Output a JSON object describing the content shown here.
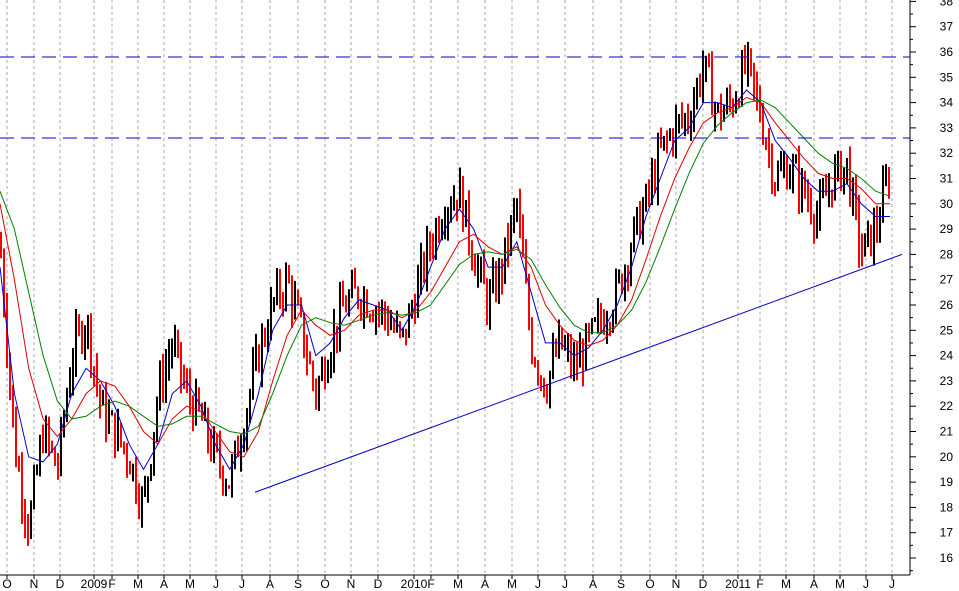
{
  "chart_data": {
    "type": "candlestick",
    "grid": true,
    "colors": {
      "up_candle": "#000000",
      "down_candle": "#ff0000",
      "ma_short": "#0000cc",
      "ma_mid": "#dd0000",
      "ma_long": "#008000",
      "trendline": "#0000cc",
      "resistance": "#0000cc",
      "grid": "#aaaaaa"
    },
    "ylim": [
      15.3,
      39.2
    ],
    "y_ticks": [
      16,
      17,
      18,
      19,
      20,
      21,
      22,
      23,
      24,
      25,
      26,
      27,
      28,
      29,
      30,
      31,
      32,
      33,
      34,
      35,
      36,
      37,
      38
    ],
    "x_ticks": [
      "O",
      "N",
      "D",
      "2009",
      "F",
      "M",
      "A",
      "M",
      "J",
      "J",
      "A",
      "S",
      "O",
      "N",
      "D",
      "2010",
      "F",
      "M",
      "A",
      "M",
      "J",
      "J",
      "A",
      "S",
      "O",
      "N",
      "D",
      "2011",
      "F",
      "M",
      "A",
      "M",
      "J",
      "J"
    ],
    "resistance_levels": [
      35.8,
      32.6
    ],
    "trendline": {
      "from": [
        "J",
        18.6
      ],
      "to": [
        "J",
        28.0
      ]
    },
    "price_series": [
      {
        "month": "O",
        "value": 28.5
      },
      {
        "month": "N",
        "value": 20.5
      },
      {
        "month": "N",
        "value": 17.2
      },
      {
        "month": "D",
        "value": 21.0
      },
      {
        "month": "D",
        "value": 19.5
      },
      {
        "month": "2009",
        "value": 24.0
      },
      {
        "month": "2009",
        "value": 25.5
      },
      {
        "month": "F",
        "value": 22.0
      },
      {
        "month": "F",
        "value": 21.0
      },
      {
        "month": "M",
        "value": 20.0
      },
      {
        "month": "M",
        "value": 18.0
      },
      {
        "month": "A",
        "value": 22.5
      },
      {
        "month": "A",
        "value": 24.5
      },
      {
        "month": "M",
        "value": 22.5
      },
      {
        "month": "M",
        "value": 21.5
      },
      {
        "month": "J",
        "value": 20.0
      },
      {
        "month": "J",
        "value": 19.0
      },
      {
        "month": "A",
        "value": 21.5
      },
      {
        "month": "A",
        "value": 24.0
      },
      {
        "month": "S",
        "value": 26.0
      },
      {
        "month": "S",
        "value": 27.0
      },
      {
        "month": "O",
        "value": 25.0
      },
      {
        "month": "N",
        "value": 22.5
      },
      {
        "month": "N",
        "value": 24.5
      },
      {
        "month": "D",
        "value": 26.0
      },
      {
        "month": "D",
        "value": 26.5
      },
      {
        "month": "2010",
        "value": 26.0
      },
      {
        "month": "2010",
        "value": 25.5
      },
      {
        "month": "F",
        "value": 24.5
      },
      {
        "month": "M",
        "value": 26.5
      },
      {
        "month": "M",
        "value": 28.5
      },
      {
        "month": "A",
        "value": 30.0
      },
      {
        "month": "A",
        "value": 30.5
      },
      {
        "month": "M",
        "value": 28.0
      },
      {
        "month": "M",
        "value": 26.0
      },
      {
        "month": "J",
        "value": 27.5
      },
      {
        "month": "J",
        "value": 30.0
      },
      {
        "month": "J",
        "value": 24.5
      },
      {
        "month": "J",
        "value": 22.8
      },
      {
        "month": "A",
        "value": 24.5
      },
      {
        "month": "A",
        "value": 23.5
      },
      {
        "month": "S",
        "value": 24.5
      },
      {
        "month": "S",
        "value": 25.5
      },
      {
        "month": "O",
        "value": 26.5
      },
      {
        "month": "O",
        "value": 28.5
      },
      {
        "month": "N",
        "value": 30.0
      },
      {
        "month": "N",
        "value": 32.0
      },
      {
        "month": "D",
        "value": 33.0
      },
      {
        "month": "D",
        "value": 33.5
      },
      {
        "month": "2011",
        "value": 35.5
      },
      {
        "month": "2011",
        "value": 33.5
      },
      {
        "month": "F",
        "value": 34.0
      },
      {
        "month": "F",
        "value": 35.5
      },
      {
        "month": "M",
        "value": 33.5
      },
      {
        "month": "M",
        "value": 31.0
      },
      {
        "month": "A",
        "value": 31.5
      },
      {
        "month": "A",
        "value": 30.5
      },
      {
        "month": "M",
        "value": 29.5
      },
      {
        "month": "M",
        "value": 31.0
      },
      {
        "month": "J",
        "value": 31.5
      },
      {
        "month": "J",
        "value": 28.0
      },
      {
        "month": "J",
        "value": 29.0
      },
      {
        "month": "J",
        "value": 31.3
      }
    ],
    "ma_short": [
      {
        "month": "O",
        "value": 27.5
      },
      {
        "month": "N",
        "value": 22.5
      },
      {
        "month": "N",
        "value": 20.0
      },
      {
        "month": "D",
        "value": 19.8
      },
      {
        "month": "D",
        "value": 20.5
      },
      {
        "month": "2009",
        "value": 22.5
      },
      {
        "month": "2009",
        "value": 23.5
      },
      {
        "month": "F",
        "value": 23.0
      },
      {
        "month": "F",
        "value": 22.0
      },
      {
        "month": "M",
        "value": 20.5
      },
      {
        "month": "M",
        "value": 19.5
      },
      {
        "month": "A",
        "value": 20.5
      },
      {
        "month": "A",
        "value": 22.5
      },
      {
        "month": "M",
        "value": 23.0
      },
      {
        "month": "M",
        "value": 22.0
      },
      {
        "month": "J",
        "value": 20.5
      },
      {
        "month": "J",
        "value": 19.5
      },
      {
        "month": "A",
        "value": 20.5
      },
      {
        "month": "A",
        "value": 22.5
      },
      {
        "month": "S",
        "value": 25.0
      },
      {
        "month": "S",
        "value": 26.0
      },
      {
        "month": "O",
        "value": 26.0
      },
      {
        "month": "N",
        "value": 24.0
      },
      {
        "month": "N",
        "value": 24.5
      },
      {
        "month": "D",
        "value": 25.5
      },
      {
        "month": "D",
        "value": 26.2
      },
      {
        "month": "2010",
        "value": 26.0
      },
      {
        "month": "2010",
        "value": 25.8
      },
      {
        "month": "F",
        "value": 25.0
      },
      {
        "month": "M",
        "value": 26.0
      },
      {
        "month": "M",
        "value": 27.5
      },
      {
        "month": "A",
        "value": 29.0
      },
      {
        "month": "A",
        "value": 29.8
      },
      {
        "month": "M",
        "value": 29.0
      },
      {
        "month": "M",
        "value": 27.5
      },
      {
        "month": "J",
        "value": 27.5
      },
      {
        "month": "J",
        "value": 28.5
      },
      {
        "month": "J",
        "value": 26.5
      },
      {
        "month": "J",
        "value": 24.5
      },
      {
        "month": "A",
        "value": 24.5
      },
      {
        "month": "A",
        "value": 24.0
      },
      {
        "month": "S",
        "value": 24.3
      },
      {
        "month": "S",
        "value": 25.0
      },
      {
        "month": "O",
        "value": 26.0
      },
      {
        "month": "O",
        "value": 27.5
      },
      {
        "month": "N",
        "value": 29.5
      },
      {
        "month": "N",
        "value": 31.0
      },
      {
        "month": "D",
        "value": 32.5
      },
      {
        "month": "D",
        "value": 33.0
      },
      {
        "month": "2011",
        "value": 34.0
      },
      {
        "month": "2011",
        "value": 34.0
      },
      {
        "month": "F",
        "value": 33.8
      },
      {
        "month": "F",
        "value": 34.5
      },
      {
        "month": "M",
        "value": 34.0
      },
      {
        "month": "M",
        "value": 32.5
      },
      {
        "month": "A",
        "value": 31.8
      },
      {
        "month": "A",
        "value": 31.0
      },
      {
        "month": "M",
        "value": 30.5
      },
      {
        "month": "M",
        "value": 30.5
      },
      {
        "month": "J",
        "value": 30.8
      },
      {
        "month": "J",
        "value": 30.0
      },
      {
        "month": "J",
        "value": 29.5
      },
      {
        "month": "J",
        "value": 29.5
      }
    ],
    "ma_mid": [
      {
        "month": "O",
        "value": 30.0
      },
      {
        "month": "N",
        "value": 27.0
      },
      {
        "month": "N",
        "value": 23.5
      },
      {
        "month": "D",
        "value": 21.5
      },
      {
        "month": "D",
        "value": 20.8
      },
      {
        "month": "2009",
        "value": 21.5
      },
      {
        "month": "2009",
        "value": 22.5
      },
      {
        "month": "F",
        "value": 23.0
      },
      {
        "month": "F",
        "value": 22.8
      },
      {
        "month": "M",
        "value": 22.0
      },
      {
        "month": "M",
        "value": 21.0
      },
      {
        "month": "A",
        "value": 20.5
      },
      {
        "month": "A",
        "value": 21.5
      },
      {
        "month": "M",
        "value": 22.0
      },
      {
        "month": "M",
        "value": 21.8
      },
      {
        "month": "J",
        "value": 21.0
      },
      {
        "month": "J",
        "value": 20.2
      },
      {
        "month": "A",
        "value": 20.0
      },
      {
        "month": "A",
        "value": 21.0
      },
      {
        "month": "S",
        "value": 23.0
      },
      {
        "month": "S",
        "value": 24.8
      },
      {
        "month": "O",
        "value": 25.8
      },
      {
        "month": "N",
        "value": 25.2
      },
      {
        "month": "N",
        "value": 24.8
      },
      {
        "month": "D",
        "value": 25.0
      },
      {
        "month": "D",
        "value": 25.6
      },
      {
        "month": "2010",
        "value": 25.8
      },
      {
        "month": "2010",
        "value": 25.8
      },
      {
        "month": "F",
        "value": 25.5
      },
      {
        "month": "M",
        "value": 25.8
      },
      {
        "month": "M",
        "value": 26.5
      },
      {
        "month": "A",
        "value": 27.5
      },
      {
        "month": "A",
        "value": 28.5
      },
      {
        "month": "M",
        "value": 28.8
      },
      {
        "month": "M",
        "value": 28.3
      },
      {
        "month": "J",
        "value": 28.0
      },
      {
        "month": "J",
        "value": 28.3
      },
      {
        "month": "J",
        "value": 27.5
      },
      {
        "month": "J",
        "value": 26.0
      },
      {
        "month": "A",
        "value": 25.2
      },
      {
        "month": "A",
        "value": 24.6
      },
      {
        "month": "S",
        "value": 24.4
      },
      {
        "month": "S",
        "value": 24.6
      },
      {
        "month": "O",
        "value": 25.2
      },
      {
        "month": "O",
        "value": 26.2
      },
      {
        "month": "N",
        "value": 27.8
      },
      {
        "month": "N",
        "value": 29.5
      },
      {
        "month": "D",
        "value": 31.0
      },
      {
        "month": "D",
        "value": 32.2
      },
      {
        "month": "2011",
        "value": 33.2
      },
      {
        "month": "2011",
        "value": 33.6
      },
      {
        "month": "F",
        "value": 33.8
      },
      {
        "month": "F",
        "value": 34.2
      },
      {
        "month": "M",
        "value": 34.0
      },
      {
        "month": "M",
        "value": 33.2
      },
      {
        "month": "A",
        "value": 32.5
      },
      {
        "month": "A",
        "value": 31.8
      },
      {
        "month": "M",
        "value": 31.2
      },
      {
        "month": "M",
        "value": 31.0
      },
      {
        "month": "J",
        "value": 31.0
      },
      {
        "month": "J",
        "value": 30.6
      },
      {
        "month": "J",
        "value": 30.0
      },
      {
        "month": "J",
        "value": 30.0
      }
    ],
    "ma_long": [
      {
        "month": "O",
        "value": 30.5
      },
      {
        "month": "N",
        "value": 29.0
      },
      {
        "month": "N",
        "value": 26.5
      },
      {
        "month": "D",
        "value": 24.0
      },
      {
        "month": "D",
        "value": 22.2
      },
      {
        "month": "2009",
        "value": 21.5
      },
      {
        "month": "2009",
        "value": 21.6
      },
      {
        "month": "F",
        "value": 22.0
      },
      {
        "month": "F",
        "value": 22.2
      },
      {
        "month": "M",
        "value": 22.0
      },
      {
        "month": "M",
        "value": 21.6
      },
      {
        "month": "A",
        "value": 21.2
      },
      {
        "month": "A",
        "value": 21.3
      },
      {
        "month": "M",
        "value": 21.6
      },
      {
        "month": "M",
        "value": 21.6
      },
      {
        "month": "J",
        "value": 21.3
      },
      {
        "month": "J",
        "value": 21.0
      },
      {
        "month": "A",
        "value": 20.9
      },
      {
        "month": "A",
        "value": 21.2
      },
      {
        "month": "S",
        "value": 22.5
      },
      {
        "month": "S",
        "value": 24.0
      },
      {
        "month": "O",
        "value": 25.2
      },
      {
        "month": "N",
        "value": 25.5
      },
      {
        "month": "N",
        "value": 25.3
      },
      {
        "month": "D",
        "value": 25.2
      },
      {
        "month": "D",
        "value": 25.4
      },
      {
        "month": "2010",
        "value": 25.6
      },
      {
        "month": "2010",
        "value": 25.7
      },
      {
        "month": "F",
        "value": 25.6
      },
      {
        "month": "M",
        "value": 25.7
      },
      {
        "month": "M",
        "value": 26.0
      },
      {
        "month": "A",
        "value": 26.8
      },
      {
        "month": "A",
        "value": 27.6
      },
      {
        "month": "M",
        "value": 28.0
      },
      {
        "month": "M",
        "value": 28.1
      },
      {
        "month": "J",
        "value": 28.0
      },
      {
        "month": "J",
        "value": 28.2
      },
      {
        "month": "J",
        "value": 27.8
      },
      {
        "month": "J",
        "value": 26.8
      },
      {
        "month": "A",
        "value": 25.9
      },
      {
        "month": "A",
        "value": 25.2
      },
      {
        "month": "S",
        "value": 24.9
      },
      {
        "month": "S",
        "value": 24.9
      },
      {
        "month": "O",
        "value": 25.2
      },
      {
        "month": "O",
        "value": 25.8
      },
      {
        "month": "N",
        "value": 26.9
      },
      {
        "month": "N",
        "value": 28.3
      },
      {
        "month": "D",
        "value": 29.8
      },
      {
        "month": "D",
        "value": 31.2
      },
      {
        "month": "2011",
        "value": 32.4
      },
      {
        "month": "2011",
        "value": 33.1
      },
      {
        "month": "F",
        "value": 33.6
      },
      {
        "month": "F",
        "value": 34.0
      },
      {
        "month": "M",
        "value": 34.1
      },
      {
        "month": "M",
        "value": 33.8
      },
      {
        "month": "A",
        "value": 33.2
      },
      {
        "month": "A",
        "value": 32.6
      },
      {
        "month": "M",
        "value": 32.0
      },
      {
        "month": "M",
        "value": 31.6
      },
      {
        "month": "J",
        "value": 31.4
      },
      {
        "month": "J",
        "value": 31.0
      },
      {
        "month": "J",
        "value": 30.5
      },
      {
        "month": "J",
        "value": 30.3
      }
    ]
  }
}
